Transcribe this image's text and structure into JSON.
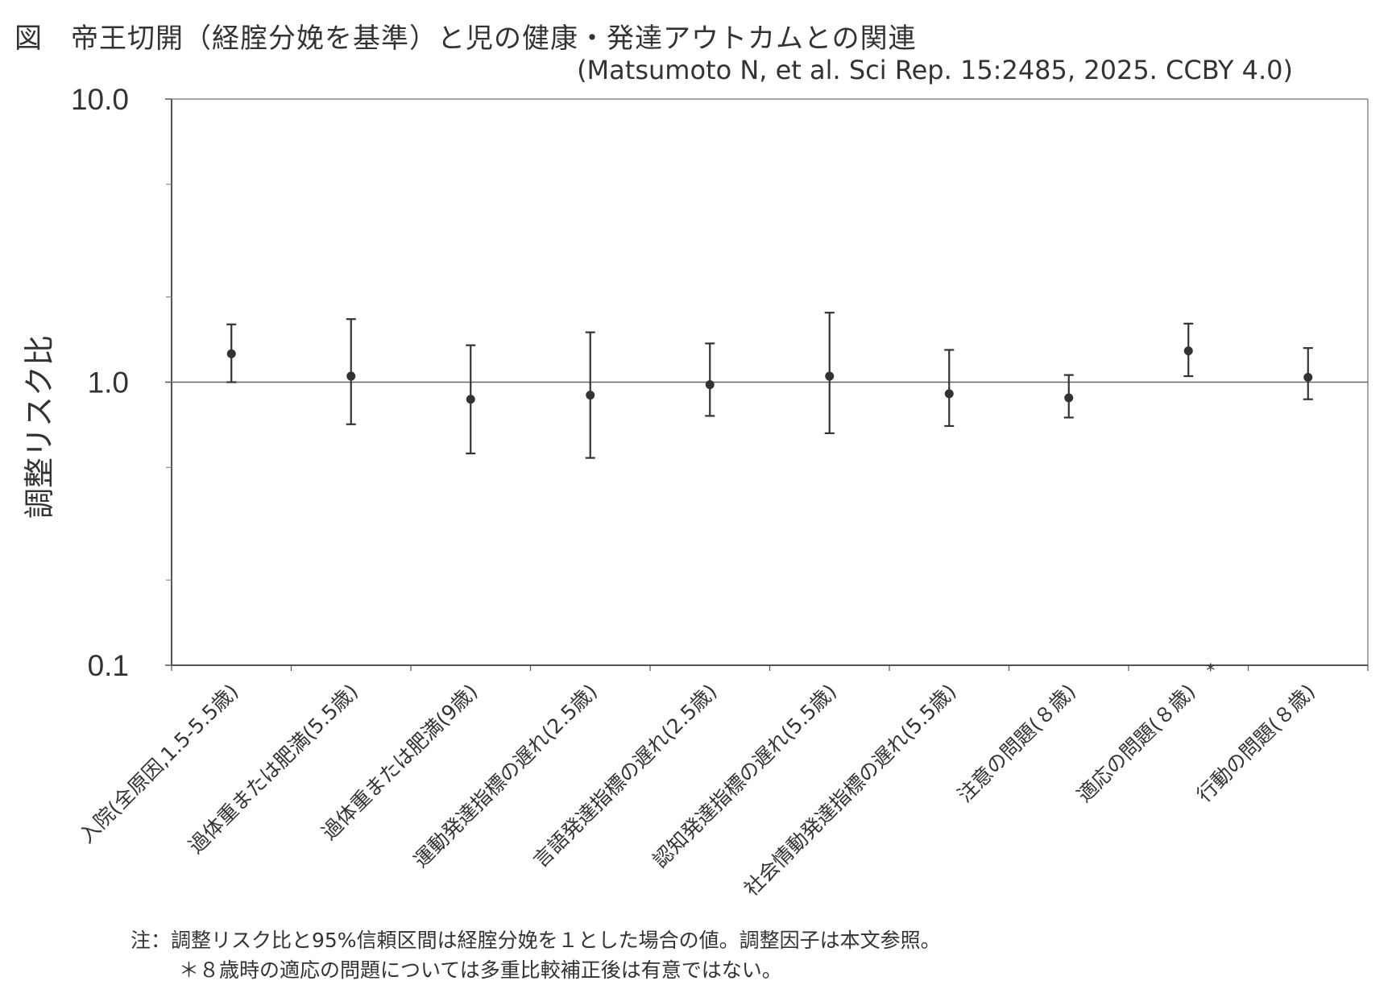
{
  "figure": {
    "title": "図　帝王切開（経腟分娩を基準）と児の健康・発達アウトカムとの関連",
    "citation": "(Matsumoto N, et al. Sci Rep. 15:2485, 2025. CCBY 4.0)"
  },
  "chart_data": {
    "type": "scatter",
    "title": "図　帝王切開（経腟分娩を基準）と児の健康・発達アウトカムとの関連",
    "ylabel": "調整リスク比",
    "yscale": "log",
    "ylim": [
      0.1,
      10.0
    ],
    "yticks": [
      "10.0",
      "1.0",
      "0.1"
    ],
    "reference_line": 1.0,
    "grid": false,
    "categories": [
      "入院(全原因,1.5-5.5歳)",
      "過体重または肥満(5.5歳)",
      "過体重または肥満(9歳)",
      "運動発達指標の遅れ(2.5歳)",
      "言語発達指標の遅れ(2.5歳)",
      "認知発達指標の遅れ(5.5歳)",
      "社会情動発達指標の遅れ(5.5歳)",
      "注意の問題(８歳)",
      "適応の問題(８歳)",
      "行動の問題(８歳)"
    ],
    "category_marks": [
      "",
      "",
      "",
      "",
      "",
      "",
      "",
      "",
      "*",
      ""
    ],
    "series": [
      {
        "estimate": [
          1.26,
          1.05,
          0.87,
          0.9,
          0.98,
          1.05,
          0.91,
          0.88,
          1.29,
          1.04
        ],
        "lower": [
          1.0,
          0.71,
          0.56,
          0.54,
          0.76,
          0.66,
          0.7,
          0.75,
          1.05,
          0.87
        ],
        "upper": [
          1.6,
          1.67,
          1.35,
          1.5,
          1.37,
          1.76,
          1.3,
          1.06,
          1.61,
          1.32
        ]
      }
    ]
  },
  "notes": {
    "line1": "注：調整リスク比と95%信頼区間は経腟分娩を１とした場合の値。調整因子は本文参照。",
    "line2": "＊８歳時の適応の問題については多重比較補正後は有意ではない。"
  }
}
